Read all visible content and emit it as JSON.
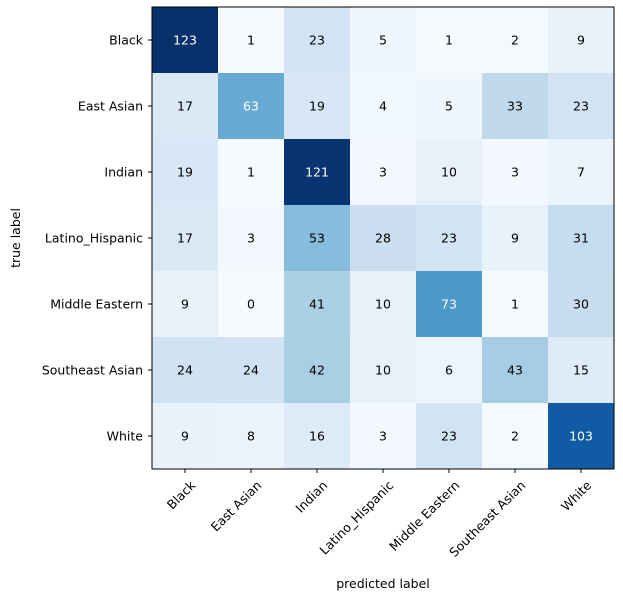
{
  "chart_data": {
    "type": "heatmap",
    "title": "",
    "xlabel": "predicted label",
    "ylabel": "true label",
    "x_categories": [
      "Black",
      "East Asian",
      "Indian",
      "Latino_Hispanic",
      "Middle Eastern",
      "Southeast Asian",
      "White"
    ],
    "y_categories": [
      "Black",
      "East Asian",
      "Indian",
      "Latino_Hispanic",
      "Middle Eastern",
      "Southeast Asian",
      "White"
    ],
    "values": [
      [
        123,
        1,
        23,
        5,
        1,
        2,
        9
      ],
      [
        17,
        63,
        19,
        4,
        5,
        33,
        23
      ],
      [
        19,
        1,
        121,
        3,
        10,
        3,
        7
      ],
      [
        17,
        3,
        53,
        28,
        23,
        9,
        31
      ],
      [
        9,
        0,
        41,
        10,
        73,
        1,
        30
      ],
      [
        24,
        24,
        42,
        10,
        6,
        43,
        15
      ],
      [
        9,
        8,
        16,
        3,
        23,
        2,
        103
      ]
    ],
    "colormap": "Blues",
    "value_range": [
      0,
      123
    ],
    "text_color_light": "#ffffff",
    "text_color_dark": "#000000",
    "grid": false
  }
}
